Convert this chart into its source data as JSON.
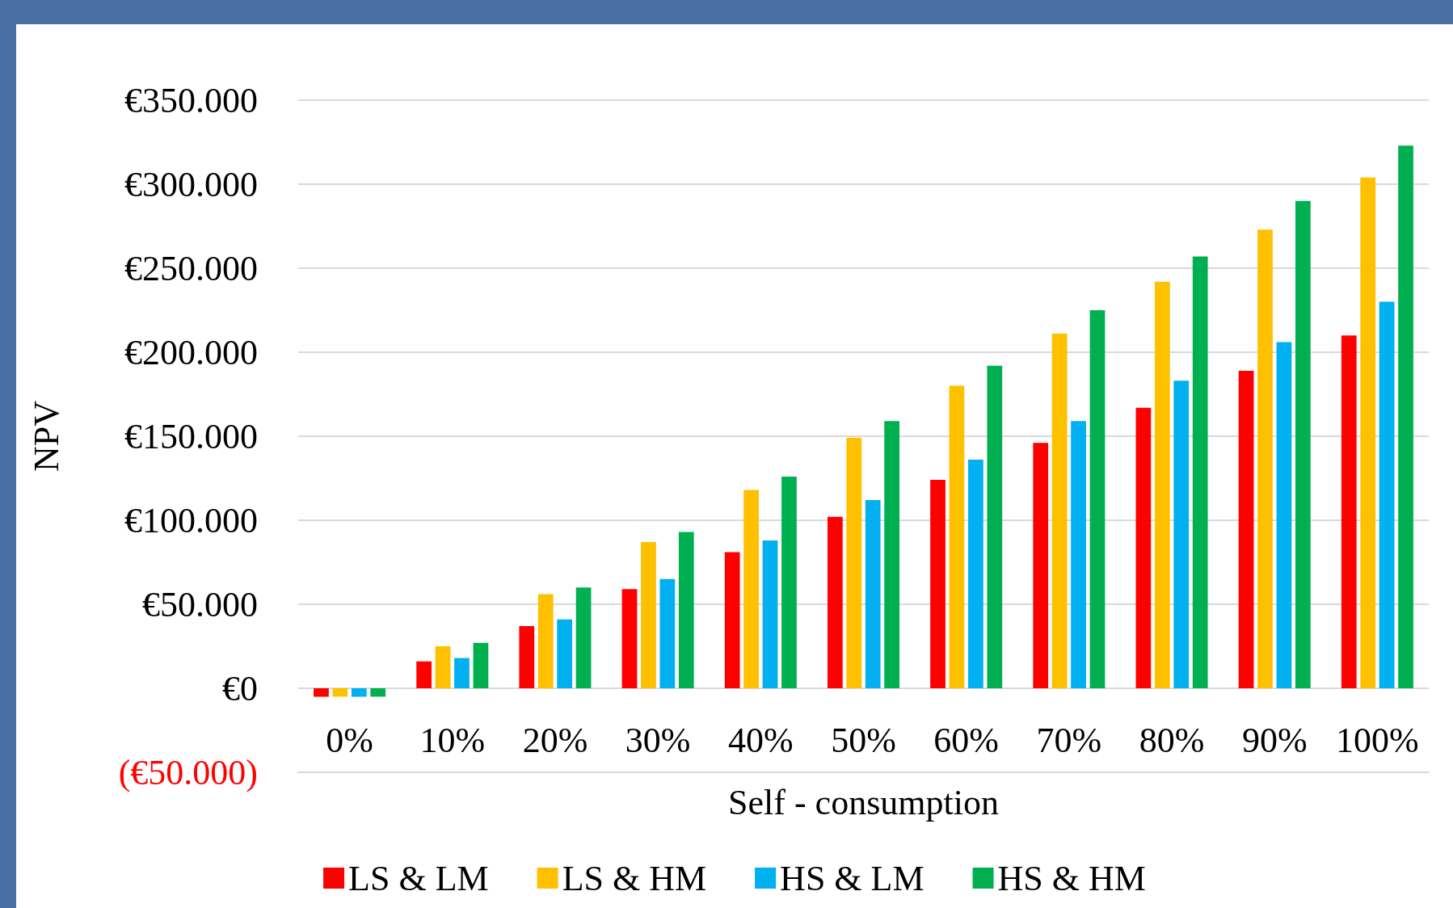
{
  "chart_data": {
    "type": "bar",
    "xlabel": "Self - consumption",
    "ylabel": "NPV",
    "categories": [
      "0%",
      "10%",
      "20%",
      "30%",
      "40%",
      "50%",
      "60%",
      "70%",
      "80%",
      "90%",
      "100%"
    ],
    "series": [
      {
        "name": "LS & LM",
        "color": "#ff0000",
        "values": [
          -5000,
          16000,
          37000,
          59000,
          81000,
          102000,
          124000,
          146000,
          167000,
          189000,
          210000
        ]
      },
      {
        "name": "LS & HM",
        "color": "#ffc000",
        "values": [
          -5000,
          25000,
          56000,
          87000,
          118000,
          149000,
          180000,
          211000,
          242000,
          273000,
          304000
        ]
      },
      {
        "name": "HS & LM",
        "color": "#00b0f0",
        "values": [
          -5000,
          18000,
          41000,
          65000,
          88000,
          112000,
          136000,
          159000,
          183000,
          206000,
          230000
        ]
      },
      {
        "name": "HS & HM",
        "color": "#00b050",
        "values": [
          -5000,
          27000,
          60000,
          93000,
          126000,
          159000,
          192000,
          225000,
          257000,
          290000,
          323000
        ]
      }
    ],
    "ylim": [
      -50000,
      350000
    ],
    "yticks": [
      {
        "value": -50000,
        "label": "(€50.000)"
      },
      {
        "value": 0,
        "label": "€0"
      },
      {
        "value": 50000,
        "label": "€50.000"
      },
      {
        "value": 100000,
        "label": "€100.000"
      },
      {
        "value": 150000,
        "label": "€150.000"
      },
      {
        "value": 200000,
        "label": "€200.000"
      },
      {
        "value": 250000,
        "label": "€250.000"
      },
      {
        "value": 300000,
        "label": "€300.000"
      },
      {
        "value": 350000,
        "label": "€350.000"
      }
    ],
    "grid": "y",
    "legend": "bottom"
  }
}
